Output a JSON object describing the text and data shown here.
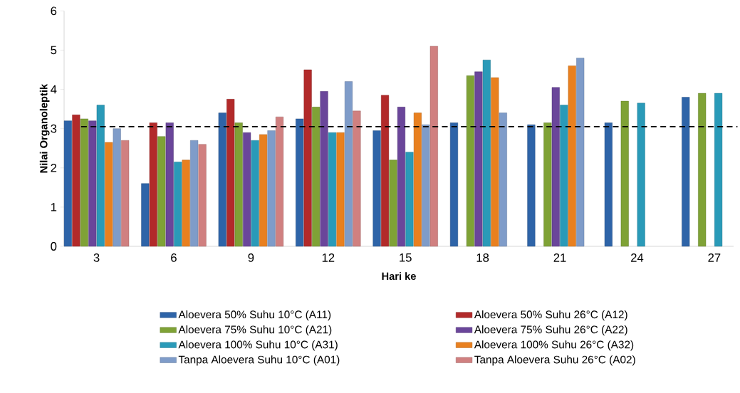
{
  "chart_data": {
    "type": "bar",
    "xlabel": "Hari ke",
    "ylabel": "Nilai Organoleptik",
    "categories": [
      "3",
      "6",
      "9",
      "12",
      "15",
      "18",
      "21",
      "24",
      "27"
    ],
    "series": [
      {
        "name": "Aloevera 50% Suhu 10°C (A11)",
        "color": "#2e64a8",
        "values": [
          3.2,
          1.6,
          3.4,
          3.25,
          2.95,
          3.15,
          3.1,
          3.15,
          3.8
        ]
      },
      {
        "name": "Aloevera 50% Suhu 26°C (A12)",
        "color": "#b22a2a",
        "values": [
          3.35,
          3.15,
          3.75,
          4.5,
          3.85,
          null,
          null,
          null,
          null
        ]
      },
      {
        "name": "Aloevera 75% Suhu 10°C (A21)",
        "color": "#7fa236",
        "values": [
          3.25,
          2.8,
          3.15,
          3.55,
          2.2,
          4.35,
          3.15,
          3.7,
          3.9
        ]
      },
      {
        "name": "Aloevera 75% Suhu 26°C (A22)",
        "color": "#6a469a",
        "values": [
          3.2,
          3.15,
          2.9,
          3.95,
          3.55,
          4.45,
          4.05,
          null,
          null
        ]
      },
      {
        "name": "Aloevera 100%  Suhu 10°C (A31)",
        "color": "#2a9ab8",
        "values": [
          3.6,
          2.15,
          2.7,
          2.9,
          2.4,
          4.75,
          3.6,
          3.65,
          3.9
        ]
      },
      {
        "name": "Aloevera 100% Suhu 26°C (A32)",
        "color": "#e9801f",
        "values": [
          2.65,
          2.2,
          2.85,
          2.9,
          3.4,
          4.3,
          4.6,
          null,
          null
        ]
      },
      {
        "name": "Tanpa Aloevera  Suhu 10°C (A01)",
        "color": "#7f9cc9",
        "values": [
          3.0,
          2.7,
          2.95,
          4.2,
          3.1,
          3.4,
          4.8,
          null,
          null
        ]
      },
      {
        "name": "Tanpa Aloevera Suhu 26°C (A02)",
        "color": "#d08080",
        "values": [
          2.7,
          2.6,
          3.3,
          3.45,
          5.1,
          null,
          null,
          null,
          null
        ]
      }
    ],
    "ylim": [
      0,
      6
    ],
    "yticks": [
      0,
      1,
      2,
      3,
      4,
      5,
      6
    ],
    "ref_lines": [
      {
        "axis": "y",
        "value": 3.05,
        "line_style": "dashed",
        "color": "#000000"
      }
    ],
    "legend": "bottom",
    "grid": false
  }
}
